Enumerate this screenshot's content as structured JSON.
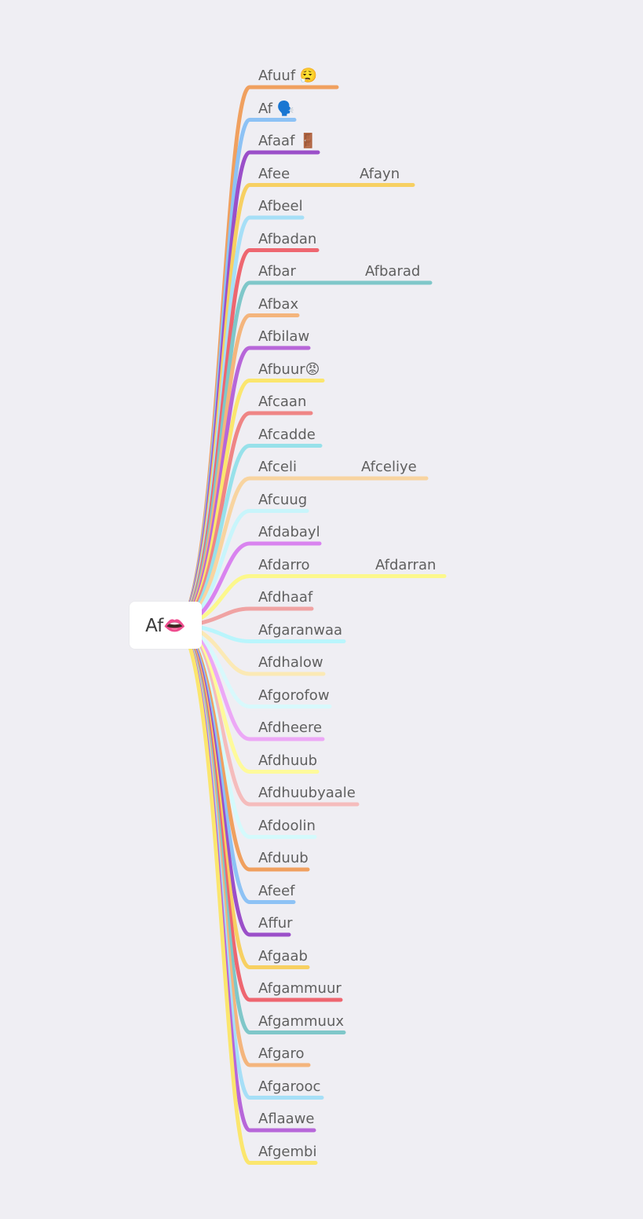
{
  "root": {
    "label": "Af👄"
  },
  "branches": [
    {
      "label": "Afuuf 😮‍💨",
      "color": "#f0a05f"
    },
    {
      "label": "Af 🗣️",
      "color": "#8dc2f5"
    },
    {
      "label": "Afaaf 🚪",
      "color": "#9b4fc9"
    },
    {
      "label": "Afee",
      "color": "#f7d062",
      "child": "Afayn"
    },
    {
      "label": "Afbeel",
      "color": "#a6dff7"
    },
    {
      "label": "Afbadan",
      "color": "#ee6670"
    },
    {
      "label": "Afbar",
      "color": "#7fc7c9",
      "child": "Afbarad"
    },
    {
      "label": "Afbax",
      "color": "#f4b57d"
    },
    {
      "label": "Afbilaw",
      "color": "#b766d9"
    },
    {
      "label": "Afbuur😡",
      "color": "#fbe66e"
    },
    {
      "label": "Afcaan",
      "color": "#ef8585"
    },
    {
      "label": "Afcadde",
      "color": "#97e1ea"
    },
    {
      "label": "Afceli",
      "color": "#f8d4a0",
      "child": "Afceliye"
    },
    {
      "label": "Afcuug",
      "color": "#c8f5fb"
    },
    {
      "label": "Afdabayl",
      "color": "#d983ef"
    },
    {
      "label": "Afdarro",
      "color": "#fcf88c",
      "child": "Afdarran"
    },
    {
      "label": "Afdhaaf",
      "color": "#f0a3a3"
    },
    {
      "label": "Afgaranwaa",
      "color": "#b9f5fc"
    },
    {
      "label": "Afdhalow",
      "color": "#fbe9b5"
    },
    {
      "label": "Afgorofow",
      "color": "#d8f9fc"
    },
    {
      "label": "Afdheere",
      "color": "#eca8f6"
    },
    {
      "label": "Afdhuub",
      "color": "#fefa9b"
    },
    {
      "label": "Afdhuubyaale",
      "color": "#f5bcbc"
    },
    {
      "label": "Afdoolin",
      "color": "#d4fafc"
    },
    {
      "label": "Afduub",
      "color": "#f0a05f"
    },
    {
      "label": "Afeef",
      "color": "#8dc2f5"
    },
    {
      "label": "Affur",
      "color": "#9b4fc9"
    },
    {
      "label": "Afgaab",
      "color": "#f7d062"
    },
    {
      "label": "Afgammuur",
      "color": "#ee6670"
    },
    {
      "label": "Afgammuux",
      "color": "#7fc7c9"
    },
    {
      "label": "Afgaro",
      "color": "#f4b57d"
    },
    {
      "label": "Afgarooc",
      "color": "#a6dff7"
    },
    {
      "label": "Aflaawe",
      "color": "#b766d9"
    },
    {
      "label": "Afgembi",
      "color": "#fbe66e"
    }
  ]
}
